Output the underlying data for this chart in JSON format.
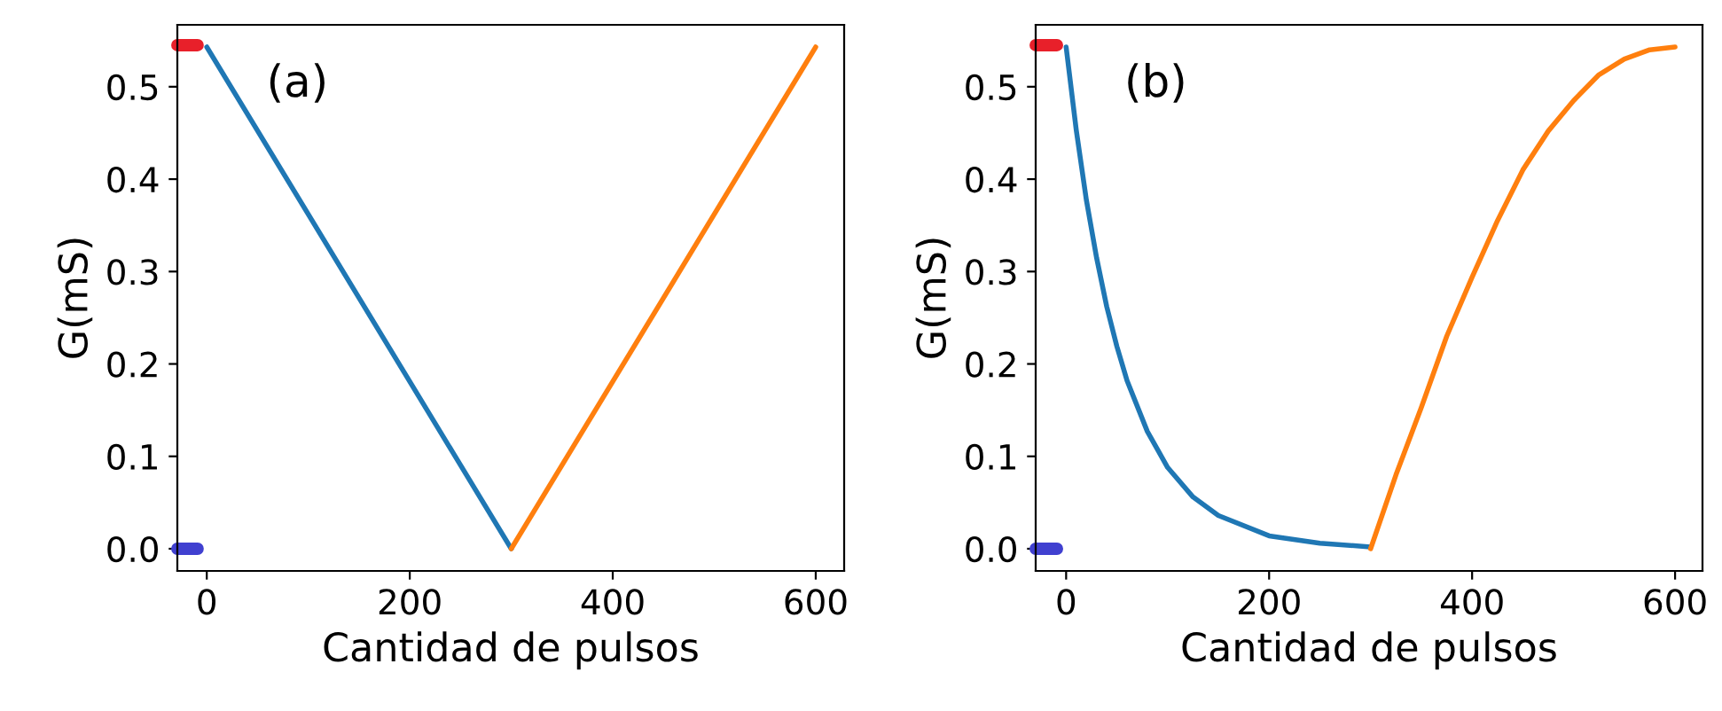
{
  "chart_data": [
    {
      "type": "line",
      "xlabel": "Cantidad de pulsos",
      "ylabel": "G(mS)",
      "annotations": [
        "(a)"
      ],
      "xlim": [
        -29,
        628
      ],
      "xticks": [
        0,
        200,
        400,
        600
      ],
      "ylim": [
        -0.024,
        0.567
      ],
      "yticks": [
        {
          "value": 0,
          "label": "0.0"
        },
        0.1,
        0.2,
        0.3,
        0.4,
        0.5
      ],
      "grid": false,
      "marker": "none",
      "line_style": "solid",
      "series": [
        {
          "color": "#1f77b4",
          "x": [
            0,
            300
          ],
          "values": [
            0.543,
            0
          ]
        },
        {
          "color": "#ff7f0e",
          "x": [
            300,
            600
          ],
          "values": [
            0,
            0.543
          ]
        },
        {
          "color": "#e8202a",
          "x": [
            -29,
            -9
          ],
          "values": [
            0.545,
            0.545
          ]
        },
        {
          "color": "#4040d0",
          "x": [
            -29,
            -9
          ],
          "values": [
            0,
            0
          ]
        }
      ]
    },
    {
      "type": "line",
      "xlabel": "Cantidad de pulsos",
      "ylabel": "G(mS)",
      "annotations": [
        "(b)"
      ],
      "xlim": [
        -30,
        627
      ],
      "xticks": [
        0,
        200,
        400,
        600
      ],
      "ylim": [
        -0.024,
        0.567
      ],
      "yticks": [
        {
          "value": 0,
          "label": "0.0"
        },
        0.1,
        0.2,
        0.3,
        0.4,
        0.5
      ],
      "grid": false,
      "marker": "none",
      "line_style": "solid",
      "series": [
        {
          "color": "#1f77b4",
          "x": [
            0,
            10,
            20,
            30,
            40,
            50,
            60,
            80,
            100,
            125,
            150,
            200,
            250,
            300
          ],
          "values": [
            0.543,
            0.453,
            0.377,
            0.315,
            0.262,
            0.219,
            0.182,
            0.127,
            0.088,
            0.056,
            0.036,
            0.014,
            0.006,
            0.002
          ]
        },
        {
          "color": "#ff7f0e",
          "x": [
            300,
            325,
            350,
            375,
            400,
            425,
            450,
            475,
            500,
            525,
            550,
            575,
            600
          ],
          "values": [
            0,
            0.08,
            0.153,
            0.23,
            0.294,
            0.355,
            0.41,
            0.452,
            0.485,
            0.513,
            0.53,
            0.54,
            0.543
          ]
        },
        {
          "color": "#e8202a",
          "x": [
            -30,
            -9
          ],
          "values": [
            0.545,
            0.545
          ]
        },
        {
          "color": "#4040d0",
          "x": [
            -30,
            -9
          ],
          "values": [
            0,
            0
          ]
        }
      ]
    }
  ]
}
